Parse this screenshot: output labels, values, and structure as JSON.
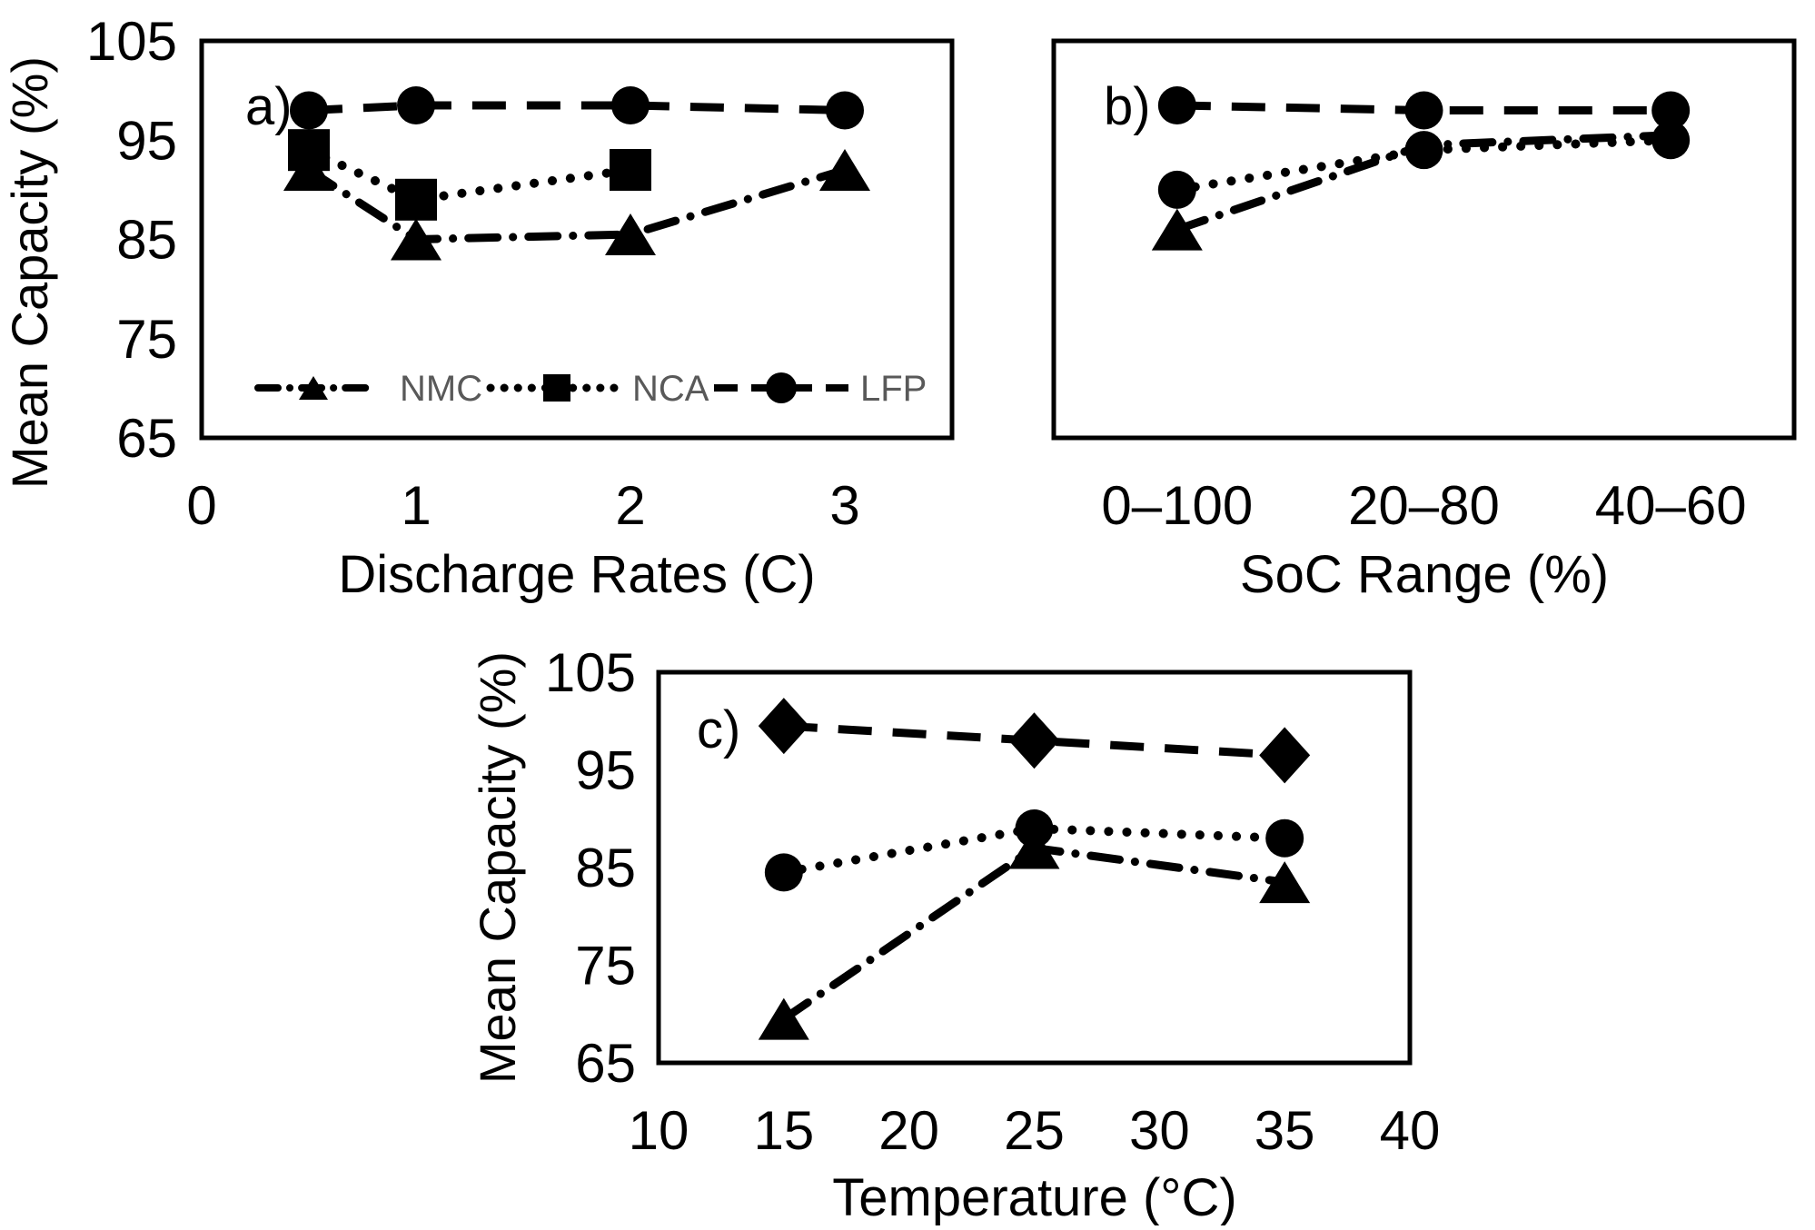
{
  "figure": {
    "series_color": "#000000",
    "legend_text_color": "#595959",
    "background": "#ffffff"
  },
  "chart_data": [
    {
      "id": "a",
      "type": "line",
      "panel_label": "a)",
      "xlabel": "Discharge Rates (C)",
      "ylabel": "Mean Capacity (%)",
      "xlim": [
        0,
        3.5
      ],
      "ylim": [
        65,
        105
      ],
      "x_ticks": [
        0,
        1,
        2,
        3
      ],
      "y_ticks": [
        105,
        95,
        85,
        75,
        65
      ],
      "grid": false,
      "legend_position": "inside-bottom",
      "legend": [
        "NMC",
        "NCA",
        "LFP"
      ],
      "series": [
        {
          "name": "NMC",
          "marker": "triangle",
          "line": "dashdot",
          "x": [
            0.5,
            1,
            2,
            3
          ],
          "values": [
            92,
            85,
            85.5,
            92
          ]
        },
        {
          "name": "NCA",
          "marker": "square",
          "line": "dotted",
          "x": [
            0.5,
            1,
            2
          ],
          "values": [
            94,
            89,
            92
          ]
        },
        {
          "name": "LFP",
          "marker": "circle",
          "line": "dashed",
          "x": [
            0.5,
            1,
            2,
            3
          ],
          "values": [
            98,
            98.5,
            98.5,
            98
          ]
        }
      ]
    },
    {
      "id": "b",
      "type": "line",
      "panel_label": "b)",
      "xlabel": "SoC Range (%)",
      "ylabel": "",
      "ylim": [
        65,
        105
      ],
      "x_categories": [
        "0–100",
        "20–80",
        "40–60"
      ],
      "y_ticks": [],
      "grid": false,
      "series": [
        {
          "name": "NMC",
          "marker": "triangle",
          "line": "dashdot",
          "values": [
            86,
            94.5,
            95.5
          ],
          "marker_visible": [
            true,
            false,
            false
          ]
        },
        {
          "name": "NCA",
          "marker": "circle",
          "line": "dotted",
          "values": [
            90,
            94,
            95
          ]
        },
        {
          "name": "LFP",
          "marker": "circle",
          "line": "dashed",
          "values": [
            98.5,
            98,
            98
          ]
        }
      ]
    },
    {
      "id": "c",
      "type": "line",
      "panel_label": "c)",
      "xlabel": "Temperature (°C)",
      "ylabel": "Mean Capacity (%)",
      "xlim": [
        10,
        40
      ],
      "ylim": [
        65,
        105
      ],
      "x_ticks": [
        10,
        15,
        20,
        25,
        30,
        35,
        40
      ],
      "y_ticks": [
        105,
        95,
        85,
        75,
        65
      ],
      "grid": false,
      "series": [
        {
          "name": "NMC",
          "marker": "triangle",
          "line": "dashdot",
          "x": [
            15,
            25,
            35
          ],
          "values": [
            69.5,
            87,
            83.5
          ]
        },
        {
          "name": "NCA",
          "marker": "circle",
          "line": "dotted",
          "x": [
            15,
            25,
            35
          ],
          "values": [
            84.5,
            89,
            88
          ]
        },
        {
          "name": "LFP",
          "marker": "diamond",
          "line": "dashed",
          "x": [
            15,
            25,
            35
          ],
          "values": [
            99.5,
            98,
            96.5
          ]
        }
      ]
    }
  ]
}
